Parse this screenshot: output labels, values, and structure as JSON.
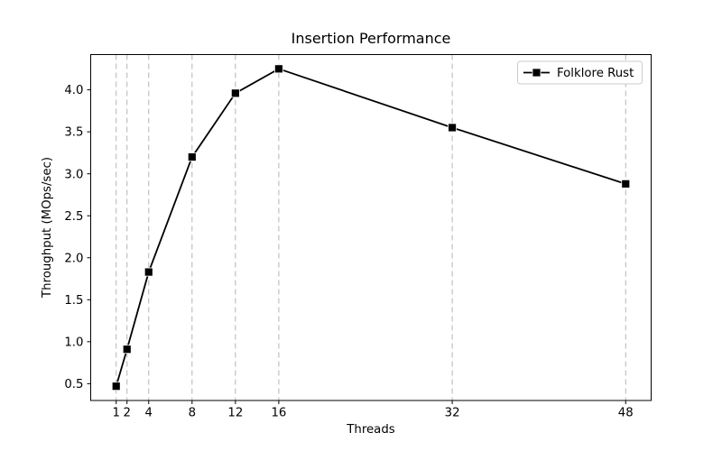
{
  "chart_data": {
    "type": "line",
    "title": "Insertion Performance",
    "xlabel": "Threads",
    "ylabel": "Throughput (MOps/sec)",
    "x": [
      1,
      2,
      4,
      8,
      12,
      16,
      32,
      48
    ],
    "series": [
      {
        "name": "Folklore Rust",
        "values": [
          0.47,
          0.91,
          1.83,
          3.2,
          3.96,
          4.25,
          3.55,
          2.88
        ],
        "color": "#000000",
        "marker": "square"
      }
    ],
    "xlim": [
      -1.35,
      50.35
    ],
    "ylim": [
      0.3,
      4.42
    ],
    "xticks": [
      1,
      2,
      4,
      8,
      12,
      16,
      32,
      48
    ],
    "xtick_labels": [
      "1",
      "2",
      "4",
      "8",
      "12",
      "16",
      "32",
      "48"
    ],
    "yticks": [
      0.5,
      1.0,
      1.5,
      2.0,
      2.5,
      3.0,
      3.5,
      4.0
    ],
    "ytick_labels": [
      "0.5",
      "1.0",
      "1.5",
      "2.0",
      "2.5",
      "3.0",
      "3.5",
      "4.0"
    ],
    "grid": {
      "vertical": true,
      "horizontal": false,
      "style": "dashed",
      "color": "#b4b4b4"
    },
    "legend": {
      "position": "upper right",
      "border_color": "#cccccc",
      "background": "#ffffff"
    },
    "colors": {
      "axes": "#000000",
      "background": "#ffffff"
    }
  }
}
